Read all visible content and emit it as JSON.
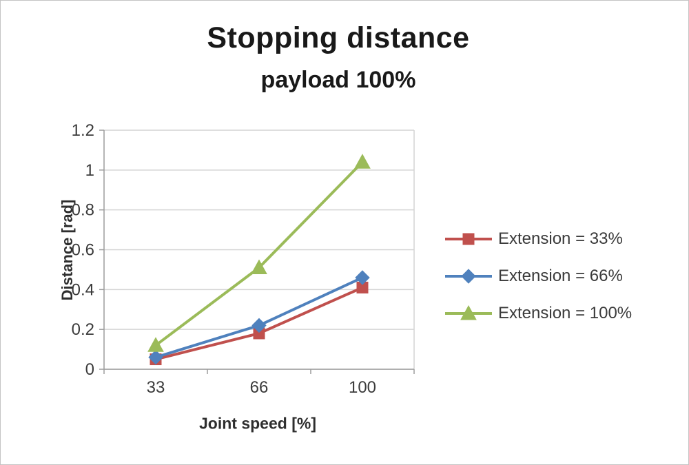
{
  "title": "Stopping distance",
  "subtitle": "payload 100%",
  "chart_data": {
    "type": "line",
    "title": "Stopping distance",
    "subtitle": "payload 100%",
    "xlabel": "Joint speed [%]",
    "ylabel": "Distance [rad]",
    "categories": [
      "33",
      "66",
      "100"
    ],
    "ylim": [
      0,
      1.2
    ],
    "yticks": [
      "0",
      "0.2",
      "0.4",
      "0.6",
      "0.8",
      "1",
      "1.2"
    ],
    "grid": true,
    "legend_position": "right",
    "series": [
      {
        "name": "Extension = 33%",
        "color": "#C0504D",
        "marker": "square",
        "values": [
          0.05,
          0.18,
          0.41
        ]
      },
      {
        "name": "Extension = 66%",
        "color": "#4F81BD",
        "marker": "diamond",
        "values": [
          0.06,
          0.22,
          0.46
        ]
      },
      {
        "name": "Extension = 100%",
        "color": "#9BBB59",
        "marker": "triangle",
        "values": [
          0.12,
          0.51,
          1.04
        ]
      }
    ]
  }
}
